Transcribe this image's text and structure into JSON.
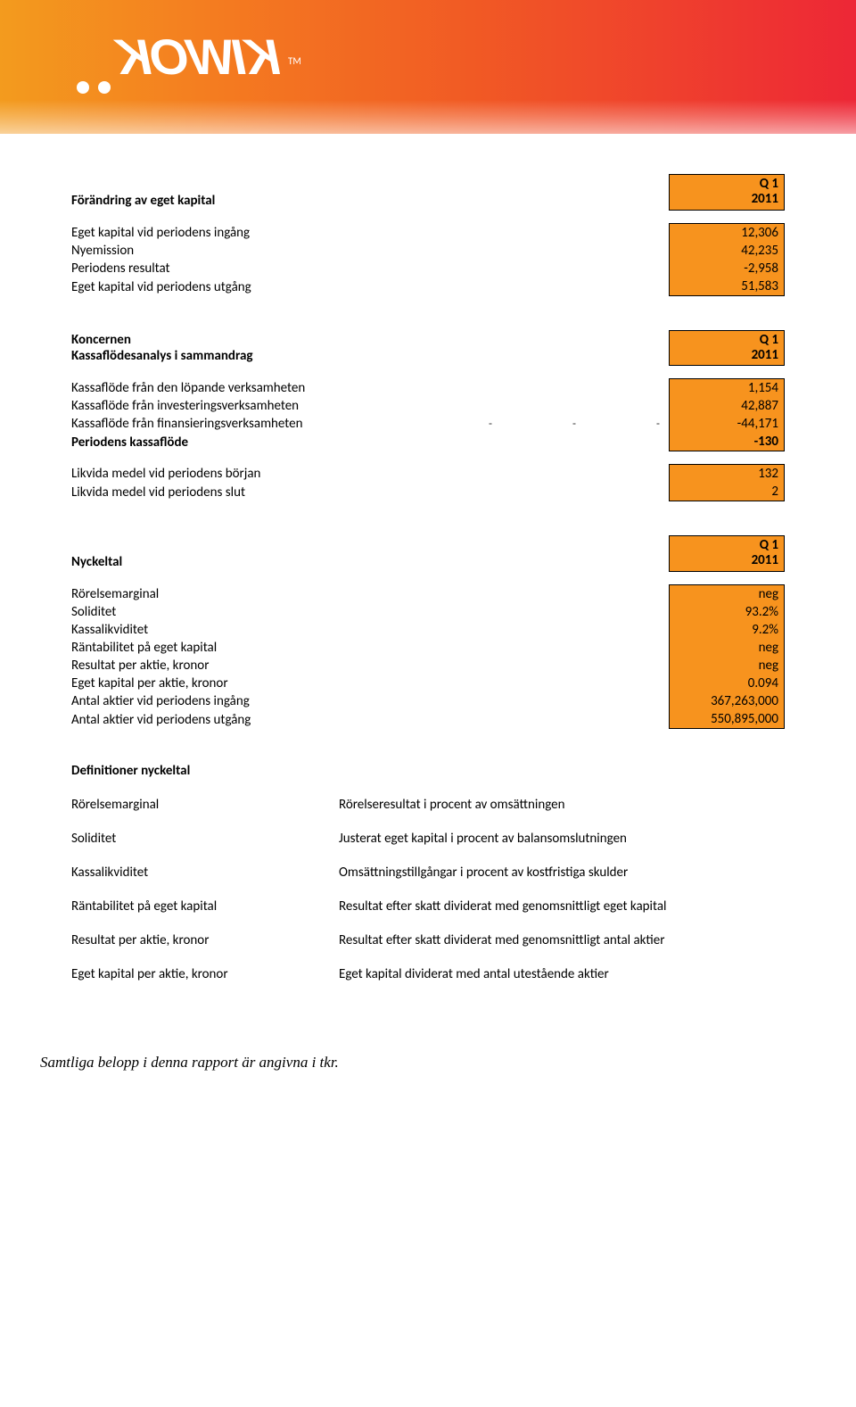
{
  "banner": {
    "logo_text": "KIWOK",
    "tm": "TM"
  },
  "sec1": {
    "title": "Förändring av eget kapital",
    "head1": "Q 1",
    "head2": "2011",
    "rows": [
      {
        "label": "Eget kapital vid periodens ingång",
        "val": "12,306"
      },
      {
        "label": "Nyemission",
        "val": "42,235"
      },
      {
        "label": "Periodens resultat",
        "val": "-2,958"
      },
      {
        "label": "Eget kapital vid periodens utgång",
        "val": "51,583"
      }
    ]
  },
  "sec2": {
    "title1": "Koncernen",
    "title2": "Kassaflödesanalys i sammandrag",
    "head1": "Q 1",
    "head2": "2011",
    "rows": [
      {
        "label": "Kassaflöde från den löpande verksamheten",
        "val": "1,154"
      },
      {
        "label": "Kassaflöde från investeringsverksamheten",
        "val": "42,887"
      },
      {
        "label": "Kassaflöde från finansieringsverksamheten",
        "val": "-44,171",
        "dashes": true
      },
      {
        "label": "Periodens kassaflöde",
        "val": "-130",
        "bold": true
      }
    ],
    "rows2": [
      {
        "label": "Likvida medel vid periodens början",
        "val": "132"
      },
      {
        "label": "Likvida medel vid periodens slut",
        "val": "2"
      }
    ]
  },
  "sec3": {
    "title": "Nyckeltal",
    "head1": "Q 1",
    "head2": "2011",
    "rows": [
      {
        "label": "Rörelsemarginal",
        "val": "neg"
      },
      {
        "label": "Soliditet",
        "val": "93.2%"
      },
      {
        "label": "Kassalikviditet",
        "val": "9.2%"
      },
      {
        "label": "Räntabilitet på eget kapital",
        "val": "neg"
      },
      {
        "label": "Resultat per aktie, kronor",
        "val": "neg"
      },
      {
        "label": "Eget kapital per aktie, kronor",
        "val": "0.094"
      },
      {
        "label": "Antal aktier vid periodens ingång",
        "val": "367,263,000"
      },
      {
        "label": "Antal aktier vid periodens utgång",
        "val": "550,895,000"
      }
    ]
  },
  "defs": {
    "title": "Definitioner nyckeltal",
    "items": [
      {
        "term": "Rörelsemarginal",
        "desc": "Rörelseresultat i procent av omsättningen"
      },
      {
        "term": "Soliditet",
        "desc": "Justerat eget kapital i procent av balansomslutningen"
      },
      {
        "term": "Kassalikviditet",
        "desc": "Omsättningstillgångar i procent av kostfristiga skulder"
      },
      {
        "term": "Räntabilitet på eget kapital",
        "desc": "Resultat efter skatt dividerat med genomsnittligt eget kapital"
      },
      {
        "term": "Resultat per aktie, kronor",
        "desc": "Resultat efter skatt dividerat med genomsnittligt antal aktier"
      },
      {
        "term": "Eget kapital per aktie, kronor",
        "desc": "Eget kapital dividerat med antal utestående aktier"
      }
    ]
  },
  "footer": "Samtliga belopp i denna rapport är angivna i tkr.",
  "colors": {
    "orange": "#f7931e",
    "grad_start": "#f39b1e",
    "grad_end": "#ed2736"
  }
}
